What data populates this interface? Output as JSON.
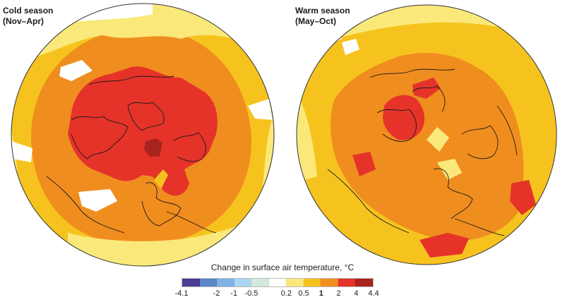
{
  "panels": {
    "cold": {
      "title_line1": "Cold season",
      "title_line2": "(Nov–Apr)"
    },
    "warm": {
      "title_line1": "Warm season",
      "title_line2": "(May–Oct)"
    }
  },
  "legend": {
    "title": "Change in surface air temperature, °C",
    "colors": [
      "#4b3c96",
      "#5b86c8",
      "#7fb1e3",
      "#a9d6f2",
      "#d4e8dc",
      "#ffffff",
      "#fae97a",
      "#f6c31e",
      "#f08d1f",
      "#e5332a",
      "#a9231e"
    ],
    "ticks": [
      {
        "label": "-4.1",
        "pos": 0
      },
      {
        "label": "-2",
        "pos": 2
      },
      {
        "label": "-1",
        "pos": 3
      },
      {
        "label": "-0.5",
        "pos": 4
      },
      {
        "label": "0.2",
        "pos": 6
      },
      {
        "label": "0.5",
        "pos": 7
      },
      {
        "label": "1",
        "pos": 8,
        "bold": true
      },
      {
        "label": "2",
        "pos": 9
      },
      {
        "label": "4",
        "pos": 10
      },
      {
        "label": "4.4",
        "pos": 11
      }
    ]
  }
}
